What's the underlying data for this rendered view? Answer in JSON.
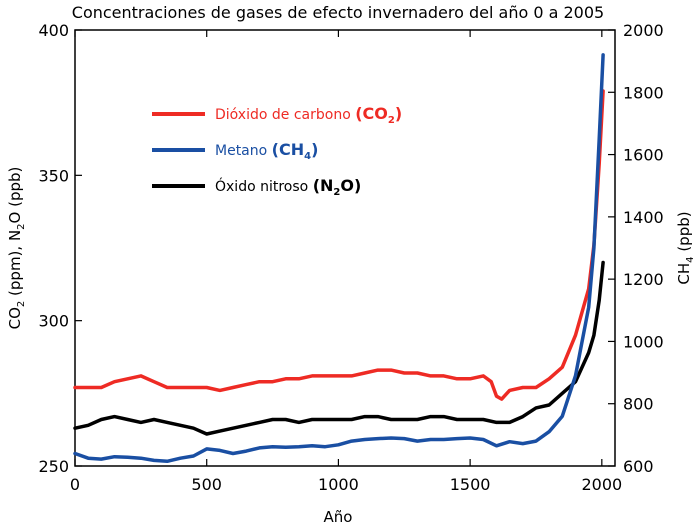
{
  "chart_data": {
    "type": "line",
    "title": "Concentraciones de gases de efecto invernadero del año 0 a 2005",
    "xlabel": "Año",
    "ylabel_left": {
      "main": "CO",
      "sub1": "2",
      "mid": " (ppm),  N",
      "sub2": "2",
      "end": "O (ppb)"
    },
    "ylabel_right": {
      "main": "CH",
      "sub": "4",
      "end": " (ppb)"
    },
    "xlim": [
      0,
      2050
    ],
    "ylim_left": [
      250,
      400
    ],
    "ylim_right": [
      600,
      2000
    ],
    "x_ticks": [
      0,
      500,
      1000,
      1500,
      2000
    ],
    "y_ticks_left": [
      250,
      300,
      350,
      400
    ],
    "y_ticks_right": [
      600,
      800,
      1000,
      1200,
      1400,
      1600,
      1800,
      2000
    ],
    "legend_position": "top-left",
    "series": [
      {
        "name": "Dióxido de carbono",
        "formula": {
          "base": "CO",
          "sub": "2",
          "suffix": ""
        },
        "color": "#ee2b24",
        "axis": "left",
        "points": [
          [
            0,
            277
          ],
          [
            50,
            277
          ],
          [
            100,
            277
          ],
          [
            150,
            279
          ],
          [
            200,
            280
          ],
          [
            250,
            281
          ],
          [
            300,
            279
          ],
          [
            350,
            277
          ],
          [
            400,
            277
          ],
          [
            450,
            277
          ],
          [
            500,
            277
          ],
          [
            550,
            276
          ],
          [
            600,
            277
          ],
          [
            650,
            278
          ],
          [
            700,
            279
          ],
          [
            750,
            279
          ],
          [
            800,
            280
          ],
          [
            850,
            280
          ],
          [
            900,
            281
          ],
          [
            950,
            281
          ],
          [
            1000,
            281
          ],
          [
            1050,
            281
          ],
          [
            1100,
            282
          ],
          [
            1150,
            283
          ],
          [
            1200,
            283
          ],
          [
            1250,
            282
          ],
          [
            1300,
            282
          ],
          [
            1350,
            281
          ],
          [
            1400,
            281
          ],
          [
            1450,
            280
          ],
          [
            1500,
            280
          ],
          [
            1550,
            281
          ],
          [
            1580,
            279
          ],
          [
            1600,
            274
          ],
          [
            1620,
            273
          ],
          [
            1650,
            276
          ],
          [
            1700,
            277
          ],
          [
            1750,
            277
          ],
          [
            1800,
            280
          ],
          [
            1850,
            284
          ],
          [
            1900,
            295
          ],
          [
            1950,
            311
          ],
          [
            1970,
            326
          ],
          [
            1990,
            354
          ],
          [
            2005,
            379
          ]
        ]
      },
      {
        "name": "Metano",
        "formula": {
          "base": "CH",
          "sub": "4",
          "suffix": ""
        },
        "color": "#1a4fa3",
        "axis": "right",
        "points": [
          [
            0,
            640
          ],
          [
            50,
            625
          ],
          [
            100,
            622
          ],
          [
            150,
            630
          ],
          [
            200,
            628
          ],
          [
            250,
            625
          ],
          [
            300,
            618
          ],
          [
            350,
            615
          ],
          [
            400,
            625
          ],
          [
            450,
            632
          ],
          [
            500,
            655
          ],
          [
            550,
            650
          ],
          [
            600,
            640
          ],
          [
            650,
            648
          ],
          [
            700,
            658
          ],
          [
            750,
            662
          ],
          [
            800,
            660
          ],
          [
            850,
            662
          ],
          [
            900,
            665
          ],
          [
            950,
            662
          ],
          [
            1000,
            668
          ],
          [
            1050,
            680
          ],
          [
            1100,
            685
          ],
          [
            1150,
            688
          ],
          [
            1200,
            690
          ],
          [
            1250,
            688
          ],
          [
            1300,
            680
          ],
          [
            1350,
            685
          ],
          [
            1400,
            685
          ],
          [
            1450,
            688
          ],
          [
            1500,
            690
          ],
          [
            1550,
            685
          ],
          [
            1600,
            665
          ],
          [
            1650,
            678
          ],
          [
            1700,
            672
          ],
          [
            1750,
            680
          ],
          [
            1800,
            710
          ],
          [
            1850,
            760
          ],
          [
            1900,
            890
          ],
          [
            1950,
            1110
          ],
          [
            1970,
            1300
          ],
          [
            1990,
            1650
          ],
          [
            2005,
            1920
          ]
        ]
      },
      {
        "name": "Óxido nitroso",
        "formula": {
          "base": "N",
          "sub": "2",
          "suffix": "O"
        },
        "color": "#000000",
        "axis": "left",
        "points": [
          [
            0,
            263
          ],
          [
            50,
            264
          ],
          [
            100,
            266
          ],
          [
            150,
            267
          ],
          [
            200,
            266
          ],
          [
            250,
            265
          ],
          [
            300,
            266
          ],
          [
            350,
            265
          ],
          [
            400,
            264
          ],
          [
            450,
            263
          ],
          [
            500,
            261
          ],
          [
            550,
            262
          ],
          [
            600,
            263
          ],
          [
            650,
            264
          ],
          [
            700,
            265
          ],
          [
            750,
            266
          ],
          [
            800,
            266
          ],
          [
            850,
            265
          ],
          [
            900,
            266
          ],
          [
            950,
            266
          ],
          [
            1000,
            266
          ],
          [
            1050,
            266
          ],
          [
            1100,
            267
          ],
          [
            1150,
            267
          ],
          [
            1200,
            266
          ],
          [
            1250,
            266
          ],
          [
            1300,
            266
          ],
          [
            1350,
            267
          ],
          [
            1400,
            267
          ],
          [
            1450,
            266
          ],
          [
            1500,
            266
          ],
          [
            1550,
            266
          ],
          [
            1600,
            265
          ],
          [
            1650,
            265
          ],
          [
            1700,
            267
          ],
          [
            1750,
            270
          ],
          [
            1800,
            271
          ],
          [
            1850,
            275
          ],
          [
            1900,
            279
          ],
          [
            1950,
            289
          ],
          [
            1970,
            295
          ],
          [
            1990,
            307
          ],
          [
            2005,
            320
          ]
        ]
      }
    ]
  }
}
